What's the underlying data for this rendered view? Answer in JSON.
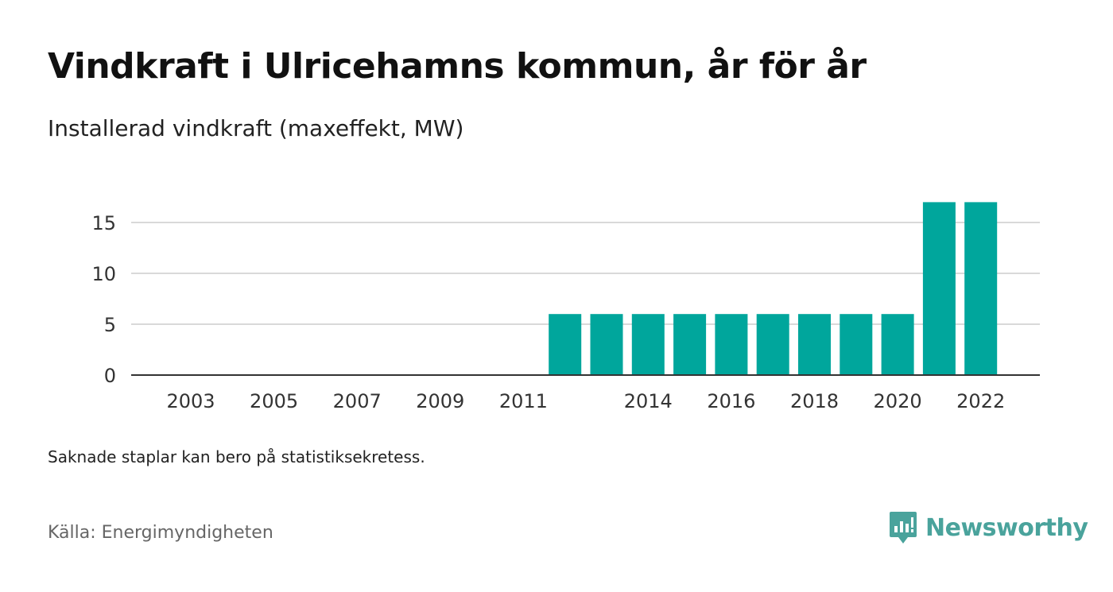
{
  "title": "Vindkraft i Ulricehamns kommun, år för år",
  "subtitle": "Installerad vindkraft (maxeffekt, MW)",
  "note": "Saknade staplar kan bero på statistiksekretess.",
  "source": "Källa: Energimyndigheten",
  "brand": {
    "name": "Newsworthy",
    "icon": "newsworthy-logo-icon",
    "color": "#4aa39c"
  },
  "chart_data": {
    "type": "bar",
    "categories": [
      "2003",
      "2004",
      "2005",
      "2006",
      "2007",
      "2008",
      "2009",
      "2010",
      "2011",
      "2012",
      "2013",
      "2014",
      "2015",
      "2016",
      "2017",
      "2018",
      "2019",
      "2020",
      "2021",
      "2022"
    ],
    "values": [
      0,
      0,
      0,
      0,
      0,
      0,
      0,
      0,
      0,
      6,
      6,
      6,
      6,
      6,
      6,
      6,
      6,
      6,
      17,
      17
    ],
    "x_tick_labels": [
      "2003",
      "2005",
      "2007",
      "2009",
      "2011",
      "2014",
      "2016",
      "2018",
      "2020",
      "2022"
    ],
    "y_ticks": [
      0,
      5,
      10,
      15
    ],
    "ylim": [
      0,
      17
    ],
    "xlabel": "",
    "ylabel": "",
    "grid": true,
    "bar_color": "#00a69c"
  }
}
